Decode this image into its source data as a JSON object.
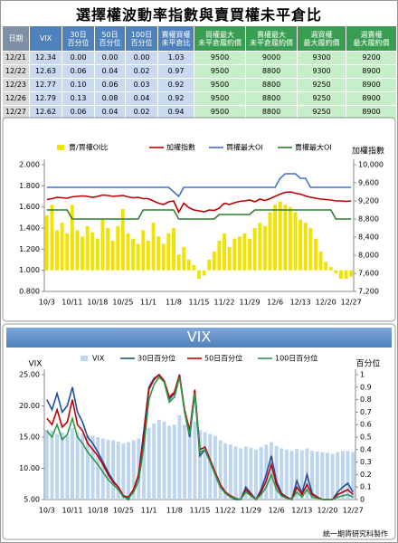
{
  "title": "選擇權波動率指數與賣買權未平倉比",
  "table": {
    "header": [
      "日期",
      "VIX",
      "30日\n百分位",
      "50日\n百分位",
      "100日\n百分位",
      "賣權買權\n未平倉比",
      "買權最大\n未平倉履約價",
      "賣權最大\n未平倉履約價",
      "週買權\n最大履約價",
      "週賣權\n最大履約價"
    ],
    "rows": [
      [
        "12/21",
        "12.34",
        "0.00",
        "0.00",
        "0.00",
        "1.03",
        "9500",
        "9000",
        "9300",
        "9200"
      ],
      [
        "12/22",
        "12.63",
        "0.06",
        "0.04",
        "0.02",
        "0.97",
        "9500",
        "8800",
        "9300",
        "8900"
      ],
      [
        "12/23",
        "12.77",
        "0.10",
        "0.06",
        "0.03",
        "0.92",
        "9500",
        "8800",
        "9250",
        "8900"
      ],
      [
        "12/26",
        "12.79",
        "0.13",
        "0.08",
        "0.04",
        "0.92",
        "9500",
        "8800",
        "9250",
        "8900"
      ],
      [
        "12/27",
        "12.62",
        "0.06",
        "0.04",
        "0.02",
        "0.94",
        "9500",
        "8800",
        "9250",
        "8900"
      ]
    ]
  },
  "chart_data": [
    {
      "type": "combo",
      "y2label": "加權指數",
      "legend": "top",
      "baseline": 1,
      "categories": [
        "10/3",
        null,
        null,
        null,
        null,
        "10/11",
        null,
        null,
        null,
        null,
        "10/18",
        null,
        null,
        null,
        null,
        "10/25",
        null,
        null,
        null,
        null,
        "11/1",
        null,
        null,
        null,
        null,
        "11/8",
        null,
        null,
        null,
        null,
        "11/15",
        null,
        null,
        null,
        null,
        "11/22",
        null,
        null,
        null,
        null,
        "11/29",
        null,
        null,
        null,
        null,
        "12/6",
        null,
        null,
        null,
        null,
        "12/13",
        null,
        null,
        null,
        null,
        "12/20",
        null,
        null,
        null,
        null,
        "12/27"
      ],
      "ylim": [
        0.8,
        2.0
      ],
      "yticks": [
        {
          "value": 0.8,
          "label": "0.800"
        },
        {
          "value": 1.0,
          "label": "1.000"
        },
        {
          "value": 1.2,
          "label": "1.200"
        },
        {
          "value": 1.4,
          "label": "1.400"
        },
        {
          "value": 1.6,
          "label": "1.600"
        },
        {
          "value": 1.8,
          "label": "1.800"
        },
        {
          "value": 2.0,
          "label": "2.000"
        }
      ],
      "y2lim": [
        7200,
        10000
      ],
      "y2ticks": [
        {
          "value": 7200,
          "label": "7,200"
        },
        {
          "value": 7600,
          "label": "7,600"
        },
        {
          "value": 8000,
          "label": "8,000"
        },
        {
          "value": 8400,
          "label": "8,400"
        },
        {
          "value": 8800,
          "label": "8,800"
        },
        {
          "value": 9200,
          "label": "9,200"
        },
        {
          "value": 9600,
          "label": "9,600"
        },
        {
          "value": 10000,
          "label": "10,000"
        }
      ],
      "series": [
        {
          "name": "賣/買權OI比",
          "type": "bar",
          "color": "#f2e200",
          "values": [
            1.52,
            1.62,
            1.38,
            1.45,
            1.35,
            1.62,
            1.38,
            1.32,
            1.42,
            1.36,
            1.3,
            1.48,
            1.4,
            1.28,
            1.42,
            1.58,
            1.35,
            1.3,
            1.25,
            1.38,
            1.28,
            1.45,
            1.32,
            1.25,
            1.35,
            1.4,
            1.15,
            1.22,
            1.1,
            1.05,
            0.92,
            0.95,
            1.1,
            1.18,
            1.28,
            1.35,
            1.22,
            1.3,
            1.32,
            1.35,
            1.3,
            1.4,
            1.45,
            1.42,
            1.55,
            1.62,
            1.65,
            1.62,
            1.6,
            1.55,
            1.48,
            1.45,
            1.4,
            1.3,
            1.18,
            1.08,
            1.03,
            0.97,
            0.92,
            0.92,
            0.94
          ]
        },
        {
          "name": "加權指數",
          "type": "line",
          "axis": "y2",
          "color": "#c00000",
          "values": [
            9230,
            9250,
            9280,
            9270,
            9260,
            9290,
            9300,
            9310,
            9300,
            9280,
            9300,
            9330,
            9320,
            9300,
            9310,
            9320,
            9290,
            9270,
            9280,
            9250,
            9250,
            9200,
            9150,
            9120,
            9180,
            9200,
            8950,
            9150,
            9050,
            9000,
            8980,
            8960,
            9000,
            8990,
            9040,
            9150,
            9120,
            9160,
            9190,
            9200,
            9220,
            9180,
            9240,
            9210,
            9250,
            9300,
            9350,
            9390,
            9400,
            9370,
            9350,
            9310,
            9280,
            9260,
            9240,
            9230,
            9220,
            9200,
            9200,
            9190,
            9200
          ]
        },
        {
          "name": "買權最大OI",
          "type": "line",
          "axis": "y2",
          "color": "#4472c4",
          "values": [
            9500,
            9500,
            9500,
            9500,
            9500,
            9500,
            9500,
            9500,
            9500,
            9500,
            9500,
            9500,
            9500,
            9500,
            9500,
            9500,
            9500,
            9500,
            9500,
            9500,
            9500,
            9500,
            9500,
            9500,
            9500,
            9400,
            9300,
            9500,
            9500,
            9500,
            9500,
            9500,
            9500,
            9500,
            9500,
            9500,
            9500,
            9500,
            9500,
            9500,
            9500,
            9500,
            9500,
            9500,
            9500,
            9500,
            9700,
            9800,
            9800,
            9800,
            9700,
            9700,
            9500,
            9500,
            9500,
            9500,
            9500,
            9500,
            9500,
            9500,
            9500
          ]
        },
        {
          "name": "賣權最大OI",
          "type": "line",
          "axis": "y2",
          "color": "#2e7d32",
          "values": [
            9000,
            9000,
            9000,
            9000,
            9000,
            8800,
            8800,
            8800,
            8800,
            8800,
            8800,
            8800,
            8800,
            8800,
            8800,
            8800,
            8800,
            8800,
            8800,
            9000,
            9000,
            9000,
            9000,
            9000,
            9000,
            9000,
            8800,
            8800,
            8800,
            8800,
            8800,
            8800,
            8800,
            8800,
            8900,
            8900,
            8900,
            8900,
            8900,
            8900,
            8900,
            9000,
            9000,
            9000,
            9000,
            9000,
            9000,
            9000,
            9000,
            9000,
            9000,
            9000,
            9000,
            9000,
            9000,
            9000,
            9000,
            8800,
            8800,
            8800,
            8800
          ]
        }
      ]
    },
    {
      "type": "combo",
      "title": "VIX",
      "ylabel": "VIX",
      "y2label": "百分位",
      "legend": "top",
      "categories": [
        "10/3",
        null,
        null,
        null,
        null,
        "10/11",
        null,
        null,
        null,
        null,
        "10/18",
        null,
        null,
        null,
        null,
        "10/25",
        null,
        null,
        null,
        null,
        "11/1",
        null,
        null,
        null,
        null,
        "11/8",
        null,
        null,
        null,
        null,
        "11/15",
        null,
        null,
        null,
        null,
        "11/22",
        null,
        null,
        null,
        null,
        "11/29",
        null,
        null,
        null,
        null,
        "12/6",
        null,
        null,
        null,
        null,
        "12/13",
        null,
        null,
        null,
        null,
        "12/20",
        null,
        null,
        null,
        null,
        "12/27"
      ],
      "ylim": [
        5,
        25
      ],
      "yticks": [
        {
          "value": 5,
          "label": "5.00"
        },
        {
          "value": 10,
          "label": "10.00"
        },
        {
          "value": 15,
          "label": "15.00"
        },
        {
          "value": 20,
          "label": "20.00"
        },
        {
          "value": 25,
          "label": "25.00"
        }
      ],
      "y2lim": [
        0,
        1
      ],
      "y2ticks": [
        0,
        0.1,
        0.2,
        0.3,
        0.4,
        0.5,
        0.6,
        0.7,
        0.8,
        0.9,
        1
      ],
      "series": [
        {
          "name": "VIX",
          "type": "bar",
          "color": "#bdd5ef",
          "values": [
            16.2,
            16.0,
            15.5,
            15.8,
            15.2,
            16.5,
            15.8,
            15.6,
            15.3,
            15.2,
            15.0,
            14.8,
            14.6,
            14.5,
            14.3,
            14.0,
            14.2,
            14.5,
            14.8,
            15.5,
            16.5,
            17.2,
            17.8,
            17.5,
            16.8,
            17.0,
            18.5,
            17.0,
            16.8,
            17.5,
            16.2,
            15.8,
            15.5,
            15.2,
            14.5,
            14.0,
            13.8,
            13.5,
            13.2,
            13.5,
            13.3,
            13.0,
            13.4,
            13.8,
            14.2,
            13.6,
            13.2,
            13.0,
            12.8,
            13.1,
            12.9,
            13.2,
            12.8,
            12.7,
            12.6,
            12.5,
            12.34,
            12.63,
            12.77,
            12.79,
            12.62
          ]
        },
        {
          "name": "30日百分位",
          "type": "line",
          "axis": "y2",
          "color": "#1f4e9a",
          "values": [
            0.8,
            0.72,
            0.85,
            0.7,
            0.75,
            0.9,
            0.7,
            0.62,
            0.5,
            0.45,
            0.38,
            0.3,
            0.22,
            0.15,
            0.1,
            0.03,
            0.0,
            0.08,
            0.2,
            0.55,
            0.9,
            0.97,
            1.0,
            0.95,
            0.8,
            0.85,
            1.0,
            0.7,
            0.5,
            0.85,
            0.35,
            0.4,
            0.3,
            0.2,
            0.1,
            0.05,
            0.02,
            0.0,
            0.0,
            0.1,
            0.05,
            0.0,
            0.08,
            0.2,
            0.35,
            0.15,
            0.05,
            0.02,
            0.0,
            0.15,
            0.05,
            0.2,
            0.05,
            0.02,
            0.0,
            0.0,
            0.0,
            0.06,
            0.1,
            0.13,
            0.06
          ]
        },
        {
          "name": "50日百分位",
          "type": "line",
          "axis": "y2",
          "color": "#c00000",
          "values": [
            0.65,
            0.6,
            0.72,
            0.58,
            0.62,
            0.8,
            0.6,
            0.55,
            0.45,
            0.4,
            0.35,
            0.28,
            0.2,
            0.14,
            0.1,
            0.03,
            0.02,
            0.08,
            0.2,
            0.5,
            0.88,
            0.96,
            1.0,
            0.95,
            0.82,
            0.86,
            1.0,
            0.72,
            0.55,
            0.88,
            0.4,
            0.42,
            0.32,
            0.22,
            0.12,
            0.06,
            0.03,
            0.01,
            0.0,
            0.08,
            0.04,
            0.0,
            0.06,
            0.15,
            0.28,
            0.12,
            0.04,
            0.02,
            0.0,
            0.1,
            0.04,
            0.12,
            0.04,
            0.02,
            0.0,
            0.0,
            0.0,
            0.04,
            0.06,
            0.08,
            0.04
          ]
        },
        {
          "name": "100日百分位",
          "type": "line",
          "axis": "y2",
          "color": "#2a9a48",
          "values": [
            0.55,
            0.5,
            0.6,
            0.48,
            0.52,
            0.65,
            0.5,
            0.45,
            0.38,
            0.33,
            0.28,
            0.22,
            0.16,
            0.12,
            0.08,
            0.02,
            0.01,
            0.06,
            0.15,
            0.42,
            0.8,
            0.92,
            0.98,
            0.94,
            0.78,
            0.82,
            0.98,
            0.7,
            0.52,
            0.85,
            0.38,
            0.4,
            0.3,
            0.2,
            0.1,
            0.05,
            0.02,
            0.01,
            0.0,
            0.06,
            0.03,
            0.0,
            0.04,
            0.1,
            0.2,
            0.08,
            0.03,
            0.01,
            0.0,
            0.06,
            0.02,
            0.08,
            0.02,
            0.01,
            0.0,
            0.0,
            0.0,
            0.02,
            0.03,
            0.04,
            0.02
          ]
        }
      ]
    }
  ],
  "footer": "統一期貨研究科製作"
}
